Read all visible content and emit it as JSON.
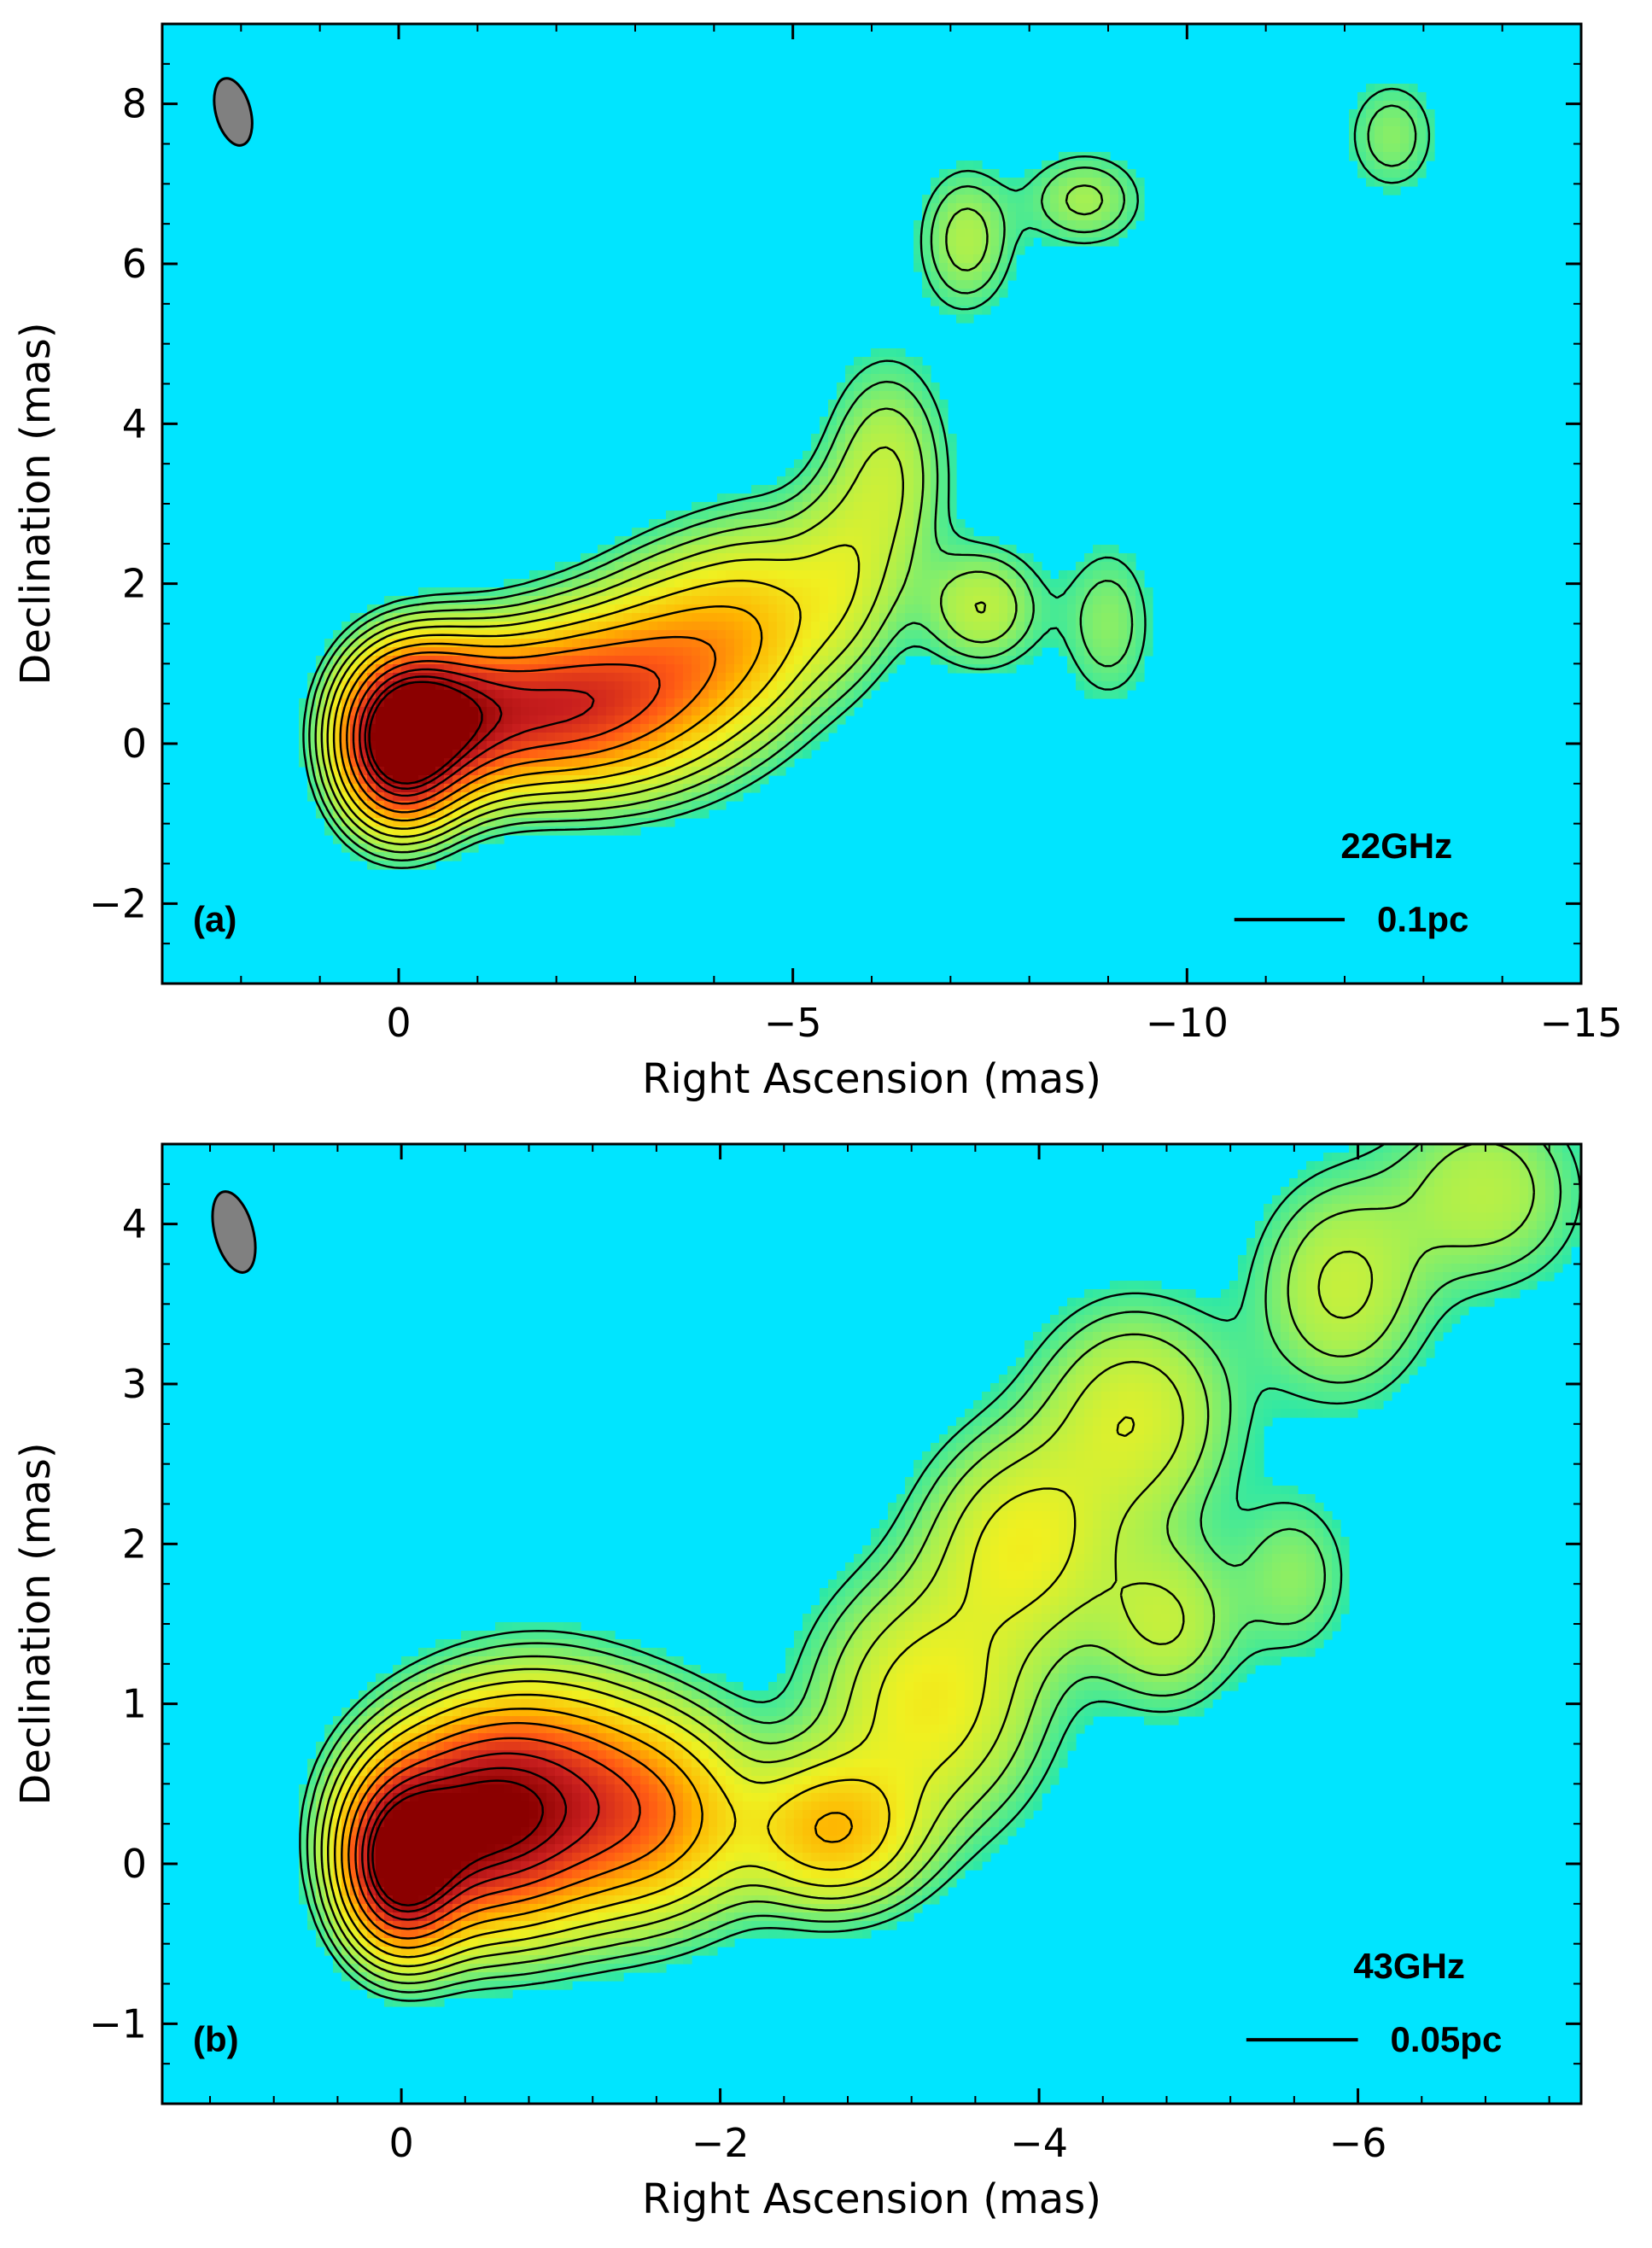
{
  "figure": {
    "colors": {
      "background": "#00e5ff",
      "core": "#8b0000",
      "beam": "#808080"
    },
    "colormap": [
      "#00e5ff",
      "#2be8a8",
      "#a8f050",
      "#f0f020",
      "#ffb400",
      "#ff5a14",
      "#c81e1e",
      "#8b0000"
    ]
  },
  "chart_data": [
    {
      "type": "contour-map",
      "panel_label": "(a)",
      "frequency": "22GHz",
      "scale_bar_label": "0.1pc",
      "xlabel": "Right Ascension (mas)",
      "ylabel": "Declination (mas)",
      "xlim": [
        3,
        -15
      ],
      "ylim": [
        -3,
        9
      ],
      "xticks": [
        0,
        -5,
        -10,
        -15
      ],
      "xtick_labels": [
        "0",
        "−5",
        "−10",
        "−15"
      ],
      "yticks": [
        -2,
        0,
        2,
        4,
        6,
        8
      ],
      "ytick_labels": [
        "−2",
        "0",
        "2",
        "4",
        "6",
        "8"
      ],
      "scale_bar_x": [
        -10.6,
        -12.0
      ],
      "scale_bar_y": -2.2,
      "beam": {
        "x": 2.1,
        "y": 7.9,
        "rx": 0.22,
        "ry": 0.43,
        "angle_deg": -15
      },
      "components": [
        {
          "x": 0.0,
          "y": 0.0,
          "sx": 0.45,
          "sy": 0.6,
          "amp": 1.0
        },
        {
          "x": -0.5,
          "y": 0.3,
          "sx": 0.6,
          "sy": 0.6,
          "amp": 0.7
        },
        {
          "x": -1.6,
          "y": 0.4,
          "sx": 0.8,
          "sy": 0.6,
          "amp": 0.5
        },
        {
          "x": -2.7,
          "y": 0.6,
          "sx": 0.8,
          "sy": 0.7,
          "amp": 0.42
        },
        {
          "x": -3.7,
          "y": 1.1,
          "sx": 0.7,
          "sy": 0.8,
          "amp": 0.28
        },
        {
          "x": -4.6,
          "y": 1.5,
          "sx": 0.6,
          "sy": 0.8,
          "amp": 0.2
        },
        {
          "x": -5.6,
          "y": 2.0,
          "sx": 0.5,
          "sy": 0.8,
          "amp": 0.14
        },
        {
          "x": -6.2,
          "y": 3.4,
          "sx": 0.5,
          "sy": 0.9,
          "amp": 0.13
        },
        {
          "x": -7.4,
          "y": 1.7,
          "sx": 0.5,
          "sy": 0.5,
          "amp": 0.13
        },
        {
          "x": -7.2,
          "y": 6.3,
          "sx": 0.4,
          "sy": 0.6,
          "amp": 0.11
        },
        {
          "x": -8.7,
          "y": 6.8,
          "sx": 0.5,
          "sy": 0.4,
          "amp": 0.1
        },
        {
          "x": -12.6,
          "y": 7.6,
          "sx": 0.4,
          "sy": 0.5,
          "amp": 0.08
        },
        {
          "x": -9.0,
          "y": 1.5,
          "sx": 0.4,
          "sy": 0.7,
          "amp": 0.08
        }
      ],
      "contour_levels": [
        0.04,
        0.06,
        0.09,
        0.13,
        0.18,
        0.25,
        0.34,
        0.45,
        0.58,
        0.72,
        0.85,
        0.95
      ]
    },
    {
      "type": "contour-map",
      "panel_label": "(b)",
      "frequency": "43GHz",
      "scale_bar_label": "0.05pc",
      "xlabel": "Right Ascension (mas)",
      "ylabel": "Declination (mas)",
      "xlim": [
        1.5,
        -7.4
      ],
      "ylim": [
        -1.5,
        4.5
      ],
      "xticks": [
        0,
        -2,
        -4,
        -6
      ],
      "xtick_labels": [
        "0",
        "−2",
        "−4",
        "−6"
      ],
      "yticks": [
        -1,
        0,
        1,
        2,
        3,
        4
      ],
      "ytick_labels": [
        "−1",
        "0",
        "1",
        "2",
        "3",
        "4"
      ],
      "scale_bar_x": [
        -5.3,
        -6.0
      ],
      "scale_bar_y": -1.1,
      "beam": {
        "x": 1.05,
        "y": 3.95,
        "rx": 0.12,
        "ry": 0.26,
        "angle_deg": -15
      },
      "components": [
        {
          "x": 0.0,
          "y": 0.0,
          "sx": 0.22,
          "sy": 0.32,
          "amp": 1.0
        },
        {
          "x": -0.4,
          "y": 0.25,
          "sx": 0.4,
          "sy": 0.4,
          "amp": 0.72
        },
        {
          "x": -0.9,
          "y": 0.4,
          "sx": 0.45,
          "sy": 0.45,
          "amp": 0.55
        },
        {
          "x": -1.6,
          "y": 0.3,
          "sx": 0.4,
          "sy": 0.4,
          "amp": 0.35
        },
        {
          "x": -2.7,
          "y": 0.2,
          "sx": 0.35,
          "sy": 0.3,
          "amp": 0.32
        },
        {
          "x": -3.3,
          "y": 1.0,
          "sx": 0.45,
          "sy": 0.5,
          "amp": 0.22
        },
        {
          "x": -3.9,
          "y": 2.0,
          "sx": 0.4,
          "sy": 0.45,
          "amp": 0.2
        },
        {
          "x": -4.6,
          "y": 2.8,
          "sx": 0.4,
          "sy": 0.45,
          "amp": 0.17
        },
        {
          "x": -4.8,
          "y": 1.5,
          "sx": 0.3,
          "sy": 0.35,
          "amp": 0.13
        },
        {
          "x": -5.9,
          "y": 3.6,
          "sx": 0.35,
          "sy": 0.45,
          "amp": 0.14
        },
        {
          "x": -6.8,
          "y": 4.2,
          "sx": 0.4,
          "sy": 0.4,
          "amp": 0.12
        },
        {
          "x": -5.6,
          "y": 1.8,
          "sx": 0.25,
          "sy": 0.35,
          "amp": 0.08
        }
      ],
      "contour_levels": [
        0.04,
        0.06,
        0.09,
        0.13,
        0.18,
        0.25,
        0.34,
        0.45,
        0.58,
        0.72,
        0.85,
        0.95
      ]
    }
  ]
}
